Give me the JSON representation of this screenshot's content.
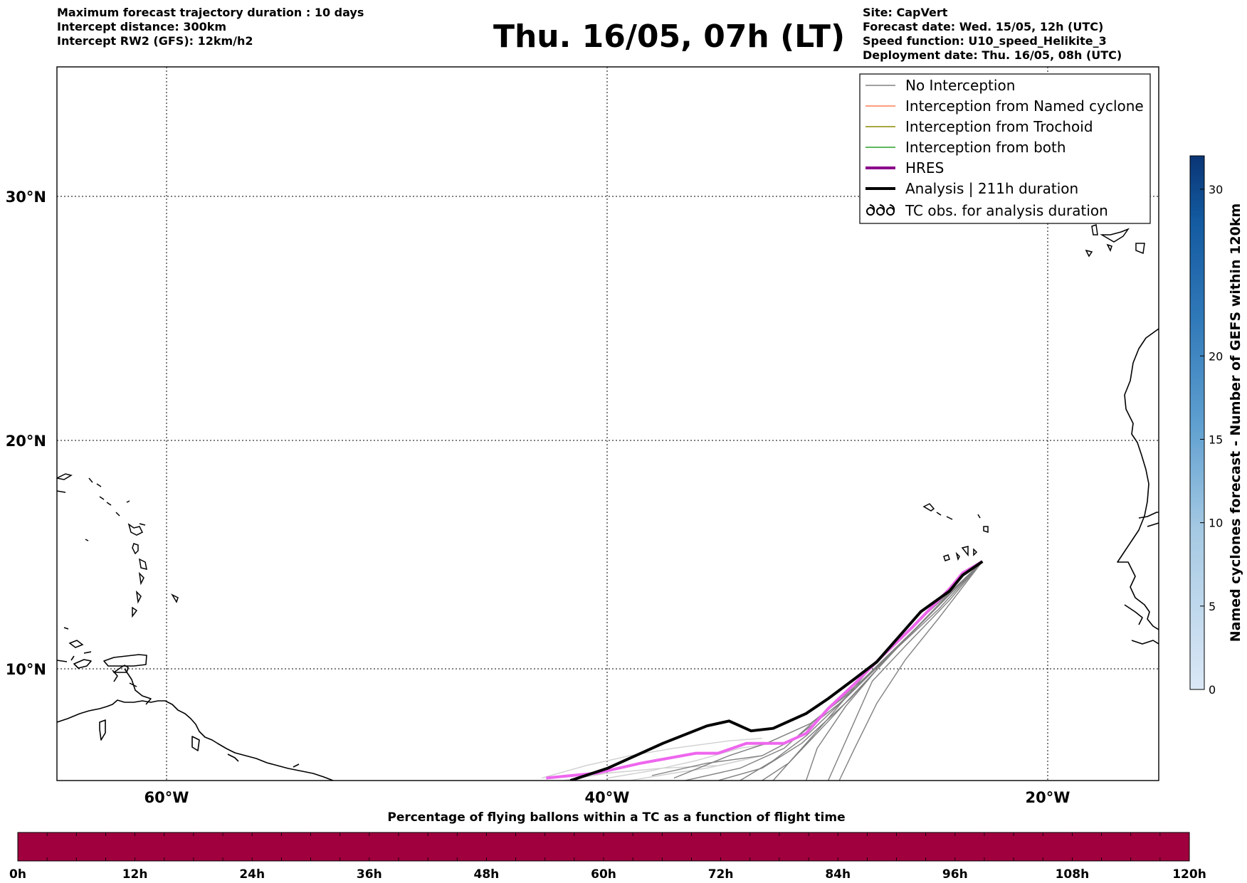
{
  "header": {
    "left": [
      "Maximum forecast trajectory duration : 10 days",
      "Intercept distance: 300km",
      "Intercept RW2 (GFS):  12km/h2"
    ],
    "title": "Thu. 16/05, 07h (LT)",
    "right": [
      "Site: CapVert",
      "Forecast date: Wed. 15/05, 12h (UTC)",
      "Speed function: U10_speed_Helikite_3",
      "Deployment date: Thu. 16/05, 08h (UTC)"
    ]
  },
  "colors": {
    "no_interception": "#808080",
    "named_cyclone": "#ff7f50",
    "trochoid": "#8b8b00",
    "both": "#2ca02c",
    "hres": "#8b008b",
    "hres_track": "#ee66ee",
    "analysis": "#000000",
    "percentage_bar": "#a0003e"
  },
  "chart_data": {
    "type": "map",
    "lon_range": [
      -65,
      -15
    ],
    "lat_range": [
      5.5,
      35
    ],
    "grid": true,
    "lon_ticks": [
      "60°W",
      "40°W",
      "20°W"
    ],
    "lat_ticks": [
      "30°N",
      "20°N",
      "10°N"
    ],
    "legend_position": "top-right",
    "legend": [
      {
        "label": "No Interception",
        "color": "#808080",
        "style": "thin"
      },
      {
        "label": "Interception from Named cyclone",
        "color": "#ff7f50",
        "style": "thin"
      },
      {
        "label": "Interception from Trochoid",
        "color": "#8b8b00",
        "style": "thin"
      },
      {
        "label": "Interception from both",
        "color": "#2ca02c",
        "style": "thin"
      },
      {
        "label": "HRES",
        "color": "#8b008b",
        "style": "thick"
      },
      {
        "label": "Analysis | 211h duration",
        "color": "#000000",
        "style": "thick"
      },
      {
        "label": "TC obs. for analysis duration",
        "color": "#000000",
        "style": "symbol"
      }
    ],
    "analysis_track": [
      [
        -41.7,
        5.5
      ],
      [
        -40.0,
        6.0
      ],
      [
        -37.5,
        7.0
      ],
      [
        -35.5,
        7.7
      ],
      [
        -34.5,
        7.9
      ],
      [
        -33.5,
        7.5
      ],
      [
        -32.5,
        7.6
      ],
      [
        -31.0,
        8.2
      ],
      [
        -30.0,
        8.8
      ],
      [
        -28.8,
        9.6
      ],
      [
        -27.8,
        10.3
      ],
      [
        -26.8,
        11.4
      ],
      [
        -25.8,
        12.5
      ],
      [
        -24.5,
        13.4
      ],
      [
        -23.9,
        14.1
      ],
      [
        -23.0,
        14.7
      ]
    ],
    "hres_track": [
      [
        -42.8,
        5.6
      ],
      [
        -40.5,
        5.8
      ],
      [
        -38.5,
        6.2
      ],
      [
        -36.0,
        6.6
      ],
      [
        -35.0,
        6.6
      ],
      [
        -33.7,
        7.0
      ],
      [
        -32.0,
        7.0
      ],
      [
        -31.0,
        7.4
      ],
      [
        -30.0,
        8.4
      ],
      [
        -28.8,
        9.4
      ],
      [
        -27.5,
        10.6
      ],
      [
        -26.2,
        11.8
      ],
      [
        -24.5,
        13.5
      ],
      [
        -23.9,
        14.2
      ],
      [
        -23.0,
        14.7
      ]
    ],
    "gefs_tracks": [
      [
        [
          -30.0,
          5.5
        ],
        [
          -29.5,
          6.5
        ],
        [
          -29.0,
          7.5
        ],
        [
          -28.0,
          9.5
        ],
        [
          -26.5,
          11.0
        ],
        [
          -24.5,
          13.0
        ],
        [
          -23.0,
          14.7
        ]
      ],
      [
        [
          -32.5,
          5.5
        ],
        [
          -31.5,
          6.5
        ],
        [
          -30.0,
          8.0
        ],
        [
          -28.3,
          9.8
        ],
        [
          -26.0,
          12.0
        ],
        [
          -24.2,
          13.6
        ],
        [
          -23.0,
          14.7
        ]
      ],
      [
        [
          -34.0,
          5.5
        ],
        [
          -32.5,
          6.3
        ],
        [
          -31.0,
          7.3
        ],
        [
          -29.0,
          9.0
        ],
        [
          -27.0,
          10.8
        ],
        [
          -25.0,
          12.6
        ],
        [
          -23.0,
          14.7
        ]
      ],
      [
        [
          -36.5,
          5.5
        ],
        [
          -34.0,
          6.0
        ],
        [
          -32.0,
          6.8
        ],
        [
          -30.5,
          8.0
        ],
        [
          -28.5,
          9.5
        ],
        [
          -26.0,
          11.8
        ],
        [
          -23.0,
          14.7
        ]
      ],
      [
        [
          -38.0,
          5.7
        ],
        [
          -35.5,
          6.2
        ],
        [
          -33.0,
          6.5
        ],
        [
          -31.5,
          7.2
        ],
        [
          -29.5,
          8.6
        ],
        [
          -27.0,
          10.8
        ],
        [
          -23.0,
          14.7
        ]
      ],
      [
        [
          -31.0,
          5.5
        ],
        [
          -30.5,
          6.8
        ],
        [
          -29.2,
          8.5
        ],
        [
          -27.5,
          10.3
        ],
        [
          -25.5,
          12.3
        ],
        [
          -23.0,
          14.7
        ]
      ],
      [
        [
          -35.0,
          5.5
        ],
        [
          -33.0,
          6.0
        ],
        [
          -31.2,
          7.0
        ],
        [
          -29.0,
          8.8
        ],
        [
          -26.8,
          11.0
        ],
        [
          -24.8,
          13.0
        ],
        [
          -23.0,
          14.7
        ]
      ],
      [
        [
          -33.0,
          5.5
        ],
        [
          -31.8,
          6.2
        ],
        [
          -30.3,
          7.6
        ],
        [
          -28.5,
          9.3
        ],
        [
          -26.3,
          11.5
        ],
        [
          -23.0,
          14.7
        ]
      ],
      [
        [
          -29.5,
          5.5
        ],
        [
          -28.8,
          6.8
        ],
        [
          -27.8,
          8.6
        ],
        [
          -26.5,
          10.4
        ],
        [
          -25.0,
          12.2
        ],
        [
          -23.0,
          14.7
        ]
      ],
      [
        [
          -37.0,
          5.6
        ],
        [
          -34.5,
          6.5
        ],
        [
          -32.8,
          7.0
        ],
        [
          -30.8,
          7.8
        ],
        [
          -28.8,
          9.2
        ],
        [
          -26.5,
          11.3
        ],
        [
          -23.0,
          14.7
        ]
      ]
    ],
    "gefs_faint_tracks": [
      [
        [
          -43.0,
          5.6
        ],
        [
          -41.0,
          6.1
        ],
        [
          -39.0,
          6.5
        ],
        [
          -37.0,
          6.8
        ],
        [
          -34.5,
          7.1
        ],
        [
          -33.0,
          7.2
        ]
      ],
      [
        [
          -40.0,
          5.6
        ],
        [
          -38.0,
          5.9
        ],
        [
          -36.0,
          6.3
        ],
        [
          -34.0,
          6.8
        ],
        [
          -32.5,
          7.0
        ]
      ],
      [
        [
          -42.0,
          5.5
        ],
        [
          -40.0,
          5.8
        ],
        [
          -37.5,
          6.0
        ],
        [
          -35.0,
          6.1
        ],
        [
          -33.5,
          6.4
        ]
      ],
      [
        [
          -39.0,
          5.5
        ],
        [
          -37.0,
          5.8
        ],
        [
          -35.5,
          6.0
        ],
        [
          -33.0,
          6.5
        ]
      ]
    ],
    "colorbar": {
      "label": "Named cyclones forecast - Number of GEFS within 120km",
      "ticks": [
        0,
        5,
        10,
        15,
        20,
        30
      ],
      "range": [
        0,
        32
      ]
    },
    "percentage_bar": {
      "title": "Percentage of flying ballons within a TC as a function of flight time",
      "ticks": [
        "0h",
        "12h",
        "24h",
        "36h",
        "48h",
        "60h",
        "72h",
        "84h",
        "96h",
        "108h",
        "120h"
      ],
      "hours_range": [
        0,
        120
      ],
      "percentage_values": [
        0,
        0,
        0,
        0,
        0,
        0,
        0,
        0,
        0,
        0,
        0
      ]
    }
  }
}
